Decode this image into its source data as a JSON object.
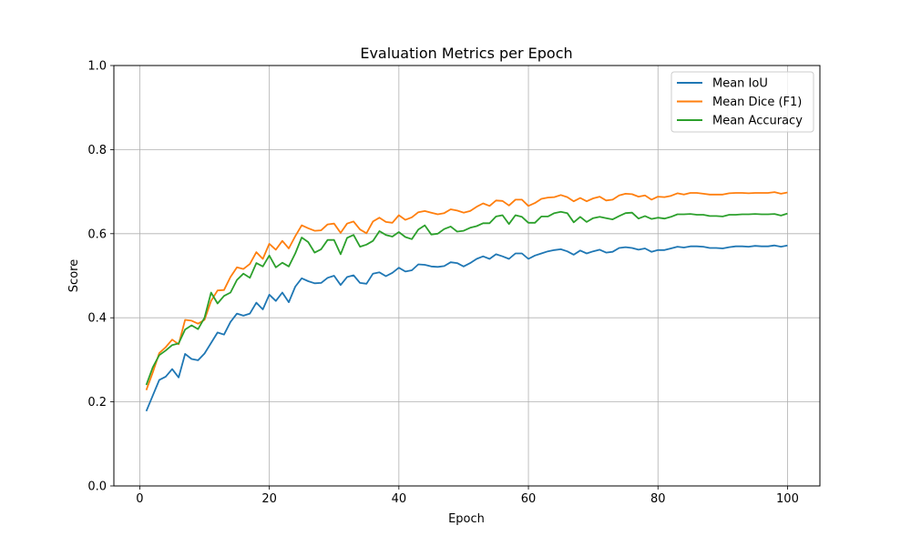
{
  "chart_data": {
    "type": "line",
    "title": "Evaluation Metrics per Epoch",
    "xlabel": "Epoch",
    "ylabel": "Score",
    "xlim": [
      -4,
      105
    ],
    "ylim": [
      0.0,
      1.0
    ],
    "x_ticks": [
      0,
      20,
      40,
      60,
      80,
      100
    ],
    "x_tick_labels": [
      "0",
      "20",
      "40",
      "60",
      "80",
      "100"
    ],
    "y_ticks": [
      0.0,
      0.2,
      0.4,
      0.6,
      0.8,
      1.0
    ],
    "y_tick_labels": [
      "0.0",
      "0.2",
      "0.4",
      "0.6",
      "0.8",
      "1.0"
    ],
    "grid": true,
    "legend_position": "top-right",
    "x": [
      1,
      2,
      3,
      4,
      5,
      6,
      7,
      8,
      9,
      10,
      11,
      12,
      13,
      14,
      15,
      16,
      17,
      18,
      19,
      20,
      21,
      22,
      23,
      24,
      25,
      26,
      27,
      28,
      29,
      30,
      31,
      32,
      33,
      34,
      35,
      36,
      37,
      38,
      39,
      40,
      41,
      42,
      43,
      44,
      45,
      46,
      47,
      48,
      49,
      50,
      51,
      52,
      53,
      54,
      55,
      56,
      57,
      58,
      59,
      60,
      61,
      62,
      63,
      64,
      65,
      66,
      67,
      68,
      69,
      70,
      71,
      72,
      73,
      74,
      75,
      76,
      77,
      78,
      79,
      80,
      81,
      82,
      83,
      84,
      85,
      86,
      87,
      88,
      89,
      90,
      91,
      92,
      93,
      94,
      95,
      96,
      97,
      98,
      99,
      100
    ],
    "series": [
      {
        "name": "Mean IoU",
        "color": "#1f77b4",
        "values": [
          0.178,
          0.215,
          0.252,
          0.26,
          0.278,
          0.258,
          0.314,
          0.302,
          0.299,
          0.315,
          0.34,
          0.365,
          0.36,
          0.39,
          0.41,
          0.405,
          0.41,
          0.436,
          0.42,
          0.455,
          0.44,
          0.46,
          0.437,
          0.474,
          0.494,
          0.487,
          0.482,
          0.483,
          0.495,
          0.5,
          0.478,
          0.497,
          0.501,
          0.483,
          0.481,
          0.505,
          0.508,
          0.499,
          0.507,
          0.519,
          0.51,
          0.513,
          0.527,
          0.526,
          0.522,
          0.521,
          0.523,
          0.532,
          0.53,
          0.522,
          0.53,
          0.54,
          0.546,
          0.54,
          0.551,
          0.546,
          0.54,
          0.553,
          0.553,
          0.54,
          0.548,
          0.553,
          0.558,
          0.561,
          0.563,
          0.558,
          0.55,
          0.56,
          0.553,
          0.558,
          0.562,
          0.555,
          0.557,
          0.566,
          0.568,
          0.566,
          0.562,
          0.565,
          0.557,
          0.561,
          0.561,
          0.565,
          0.569,
          0.567,
          0.57,
          0.57,
          0.569,
          0.566,
          0.566,
          0.565,
          0.568,
          0.57,
          0.57,
          0.569,
          0.571,
          0.57,
          0.57,
          0.572,
          0.569,
          0.572
        ]
      },
      {
        "name": "Mean Dice (F1)",
        "color": "#ff7f0e",
        "values": [
          0.228,
          0.27,
          0.316,
          0.33,
          0.348,
          0.337,
          0.395,
          0.393,
          0.386,
          0.395,
          0.44,
          0.465,
          0.466,
          0.497,
          0.52,
          0.516,
          0.528,
          0.556,
          0.54,
          0.576,
          0.562,
          0.583,
          0.565,
          0.594,
          0.62,
          0.613,
          0.607,
          0.608,
          0.622,
          0.624,
          0.602,
          0.624,
          0.629,
          0.61,
          0.601,
          0.629,
          0.638,
          0.628,
          0.626,
          0.644,
          0.633,
          0.639,
          0.651,
          0.654,
          0.65,
          0.646,
          0.649,
          0.658,
          0.655,
          0.65,
          0.654,
          0.664,
          0.672,
          0.666,
          0.679,
          0.678,
          0.667,
          0.681,
          0.681,
          0.666,
          0.673,
          0.683,
          0.686,
          0.687,
          0.692,
          0.687,
          0.677,
          0.685,
          0.677,
          0.684,
          0.688,
          0.679,
          0.681,
          0.691,
          0.695,
          0.694,
          0.688,
          0.691,
          0.681,
          0.688,
          0.687,
          0.69,
          0.696,
          0.693,
          0.697,
          0.697,
          0.695,
          0.693,
          0.693,
          0.693,
          0.696,
          0.697,
          0.697,
          0.696,
          0.697,
          0.697,
          0.697,
          0.699,
          0.695,
          0.698
        ]
      },
      {
        "name": "Mean Accuracy",
        "color": "#2ca02c",
        "values": [
          0.24,
          0.282,
          0.311,
          0.322,
          0.335,
          0.339,
          0.372,
          0.382,
          0.373,
          0.4,
          0.46,
          0.434,
          0.452,
          0.46,
          0.49,
          0.505,
          0.495,
          0.53,
          0.522,
          0.548,
          0.52,
          0.531,
          0.522,
          0.553,
          0.591,
          0.58,
          0.555,
          0.563,
          0.585,
          0.585,
          0.551,
          0.59,
          0.597,
          0.569,
          0.574,
          0.583,
          0.606,
          0.597,
          0.593,
          0.604,
          0.592,
          0.587,
          0.61,
          0.62,
          0.598,
          0.6,
          0.611,
          0.617,
          0.605,
          0.607,
          0.614,
          0.618,
          0.625,
          0.625,
          0.641,
          0.644,
          0.623,
          0.644,
          0.64,
          0.626,
          0.626,
          0.641,
          0.641,
          0.649,
          0.652,
          0.649,
          0.627,
          0.64,
          0.628,
          0.637,
          0.64,
          0.637,
          0.634,
          0.642,
          0.649,
          0.65,
          0.636,
          0.642,
          0.635,
          0.638,
          0.636,
          0.64,
          0.646,
          0.646,
          0.647,
          0.645,
          0.645,
          0.642,
          0.642,
          0.641,
          0.645,
          0.645,
          0.646,
          0.646,
          0.647,
          0.646,
          0.646,
          0.647,
          0.643,
          0.648
        ]
      }
    ]
  }
}
